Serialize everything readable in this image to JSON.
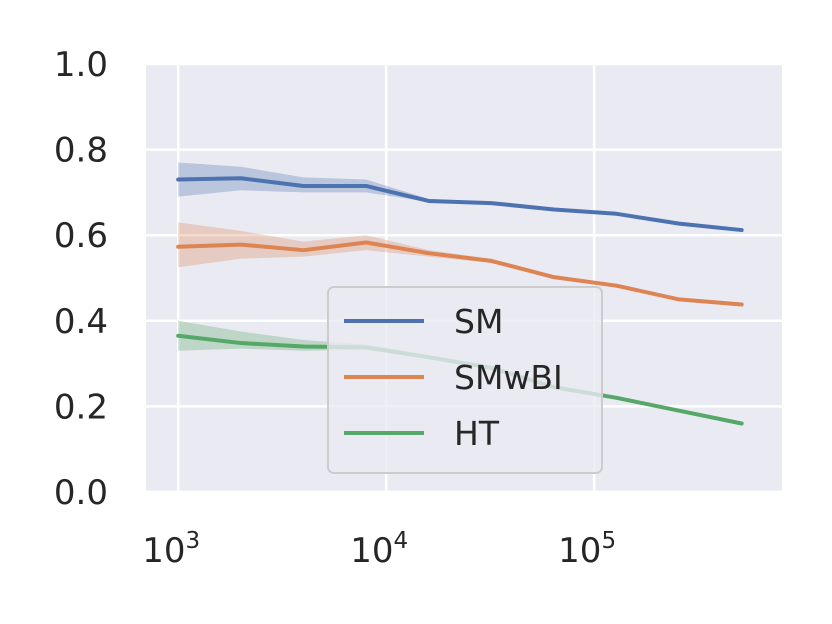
{
  "chart_data": {
    "type": "line",
    "title": "",
    "xlabel": "",
    "ylabel": "",
    "xscale": "log",
    "xlim": [
      700,
      800000
    ],
    "ylim": [
      0.0,
      1.0
    ],
    "grid": true,
    "legend_position": "lower-center",
    "x": [
      1000,
      2000,
      4000,
      8000,
      16000,
      32000,
      64000,
      128000,
      256000,
      512000
    ],
    "x_ticks": [
      {
        "value": 1000,
        "base": "10",
        "exp": "3"
      },
      {
        "value": 10000,
        "base": "10",
        "exp": "4"
      },
      {
        "value": 100000,
        "base": "10",
        "exp": "5"
      }
    ],
    "y_ticks": [
      "0.0",
      "0.2",
      "0.4",
      "0.6",
      "0.8",
      "1.0"
    ],
    "series": [
      {
        "name": "SM",
        "color": "#4c72b0",
        "values": [
          0.73,
          0.733,
          0.715,
          0.715,
          0.68,
          0.675,
          0.66,
          0.65,
          0.627,
          0.612
        ],
        "lower": [
          0.69,
          0.705,
          0.7,
          0.7,
          0.678,
          0.673,
          0.658,
          0.648,
          0.625,
          0.61
        ],
        "upper": [
          0.77,
          0.76,
          0.735,
          0.73,
          0.685,
          0.678,
          0.663,
          0.652,
          0.63,
          0.615
        ]
      },
      {
        "name": "SMwBI",
        "color": "#dd8452",
        "values": [
          0.573,
          0.578,
          0.565,
          0.583,
          0.558,
          0.54,
          0.502,
          0.482,
          0.45,
          0.438
        ],
        "lower": [
          0.525,
          0.545,
          0.55,
          0.565,
          0.55,
          0.535,
          0.498,
          0.478,
          0.447,
          0.435
        ],
        "upper": [
          0.63,
          0.61,
          0.585,
          0.6,
          0.565,
          0.545,
          0.506,
          0.486,
          0.453,
          0.441
        ]
      },
      {
        "name": "HT",
        "color": "#55a868",
        "values": [
          0.365,
          0.348,
          0.34,
          0.338,
          0.315,
          0.29,
          0.245,
          0.22,
          0.19,
          0.16
        ],
        "lower": [
          0.33,
          0.335,
          0.33,
          0.332,
          0.31,
          0.285,
          0.24,
          0.216,
          0.187,
          0.157
        ],
        "upper": [
          0.4,
          0.375,
          0.355,
          0.345,
          0.32,
          0.295,
          0.25,
          0.224,
          0.193,
          0.163
        ]
      }
    ]
  }
}
